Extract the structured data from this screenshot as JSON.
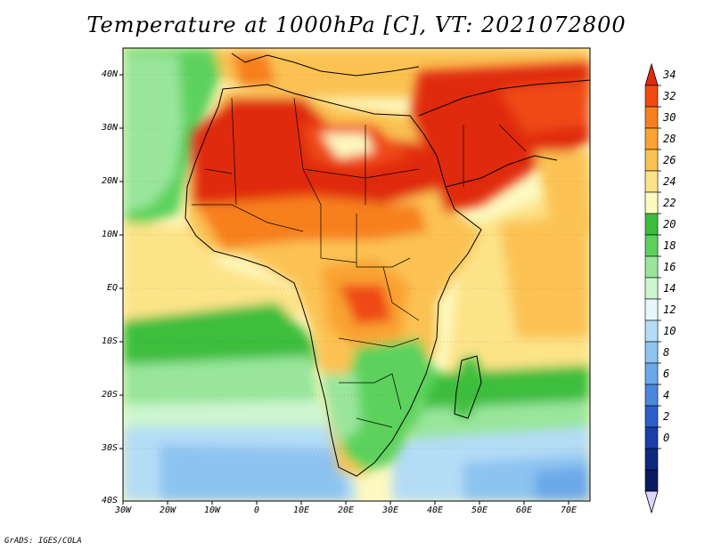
{
  "title": "Temperature at 1000hPa [C], VT: 2021072800",
  "credit": "GrADS: IGES/COLA",
  "lat_labels": [
    "40N",
    "30N",
    "20N",
    "10N",
    "EQ",
    "10S",
    "20S",
    "30S",
    "40S"
  ],
  "lon_labels": [
    "30W",
    "20W",
    "10W",
    "0",
    "10E",
    "20E",
    "30E",
    "40E",
    "50E",
    "60E",
    "70E"
  ],
  "colorbar": {
    "labels": [
      "34",
      "32",
      "30",
      "28",
      "26",
      "24",
      "22",
      "20",
      "18",
      "16",
      "14",
      "12",
      "10",
      "8",
      "6",
      "4",
      "2",
      "0"
    ],
    "colors": [
      "#e02a0c",
      "#f04a12",
      "#f7801e",
      "#f9a331",
      "#fbc253",
      "#fde388",
      "#fdf9c1",
      "#3cbe3c",
      "#5cd25c",
      "#99e69b",
      "#cdf6d0",
      "#e6f7fb",
      "#b4dcf6",
      "#8cc3f0",
      "#6aa8e8",
      "#4a88de",
      "#2a60c8",
      "#1a3fa8",
      "#0e2880",
      "#0a1a60",
      "#d8d6fa"
    ]
  }
}
